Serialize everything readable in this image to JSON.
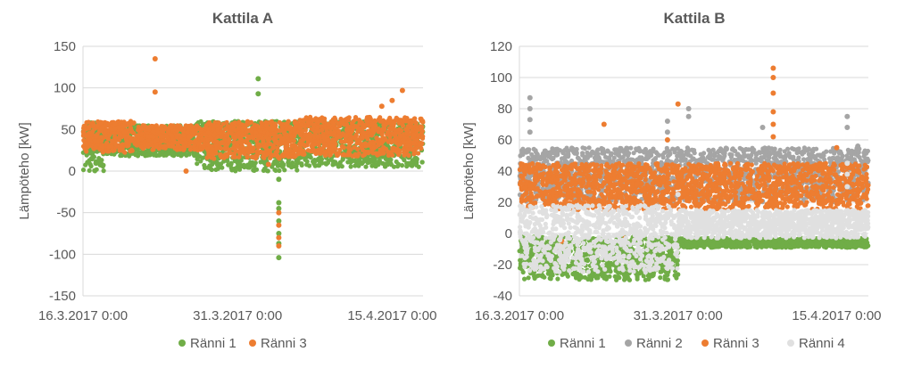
{
  "chart_data": [
    {
      "type": "scatter",
      "title": "Kattila A",
      "ylabel": "Lämpöteho [kW]",
      "xlabel": "",
      "ylim": [
        -150,
        150
      ],
      "yticks": [
        150,
        100,
        50,
        0,
        -50,
        -100,
        -150
      ],
      "xlim": [
        "2017-03-16",
        "2017-04-18"
      ],
      "xticks": [
        "16.3.2017 0:00",
        "31.3.2017 0:00",
        "15.4.2017 0:00"
      ],
      "grid": true,
      "legend_position": "bottom",
      "series": [
        {
          "name": "Ränni 1",
          "color": "#70ad47",
          "bands": [
            {
              "x_start": "2017-03-16",
              "x_end": "2017-03-18",
              "y_min": 0,
              "y_max": 60
            },
            {
              "x_start": "2017-03-18",
              "x_end": "2017-03-27",
              "y_min": 18,
              "y_max": 55
            },
            {
              "x_start": "2017-03-27",
              "x_end": "2017-04-07",
              "y_min": 0,
              "y_max": 60
            },
            {
              "x_start": "2017-04-07",
              "x_end": "2017-04-18",
              "y_min": 5,
              "y_max": 60
            }
          ],
          "points": [
            {
              "x": "2017-04-02",
              "y": 111
            },
            {
              "x": "2017-04-02",
              "y": 93
            },
            {
              "x": "2017-04-04",
              "y": -38
            },
            {
              "x": "2017-04-04",
              "y": -45
            },
            {
              "x": "2017-04-04",
              "y": -60
            },
            {
              "x": "2017-04-04",
              "y": -75
            },
            {
              "x": "2017-04-04",
              "y": -87
            },
            {
              "x": "2017-04-04",
              "y": -104
            },
            {
              "x": "2017-04-04",
              "y": -10
            }
          ]
        },
        {
          "name": "Ränni 3",
          "color": "#ed7d31",
          "bands": [
            {
              "x_start": "2017-03-16",
              "x_end": "2017-03-21",
              "y_min": 22,
              "y_max": 60
            },
            {
              "x_start": "2017-03-21",
              "x_end": "2017-03-28",
              "y_min": 25,
              "y_max": 55
            },
            {
              "x_start": "2017-03-28",
              "x_end": "2017-04-06",
              "y_min": 15,
              "y_max": 60
            },
            {
              "x_start": "2017-04-06",
              "x_end": "2017-04-18",
              "y_min": 18,
              "y_max": 65
            }
          ],
          "points": [
            {
              "x": "2017-03-23",
              "y": 135
            },
            {
              "x": "2017-03-23",
              "y": 95
            },
            {
              "x": "2017-04-04",
              "y": -50
            },
            {
              "x": "2017-04-04",
              "y": -65
            },
            {
              "x": "2017-04-04",
              "y": -80
            },
            {
              "x": "2017-04-04",
              "y": -90
            },
            {
              "x": "2017-04-16",
              "y": 97
            },
            {
              "x": "2017-04-15",
              "y": 85
            },
            {
              "x": "2017-04-14",
              "y": 78
            },
            {
              "x": "2017-03-26",
              "y": 0
            },
            {
              "x": "2017-04-03",
              "y": 8
            }
          ]
        }
      ]
    },
    {
      "type": "scatter",
      "title": "Kattila B",
      "ylabel": "Lämpöteho [kW]",
      "xlabel": "",
      "ylim": [
        -40,
        120
      ],
      "yticks": [
        120,
        100,
        80,
        60,
        40,
        20,
        0,
        -20,
        -40
      ],
      "xlim": [
        "2017-03-16",
        "2017-04-18"
      ],
      "xticks": [
        "16.3.2017 0:00",
        "31.3.2017 0:00",
        "15.4.2017 0:00"
      ],
      "grid": true,
      "legend_position": "bottom",
      "series": [
        {
          "name": "Ränni 1",
          "color": "#70ad47",
          "bands": [
            {
              "x_start": "2017-03-16",
              "x_end": "2017-03-31",
              "y_min": -30,
              "y_max": -2
            },
            {
              "x_start": "2017-03-31",
              "x_end": "2017-04-18",
              "y_min": -9,
              "y_max": -3
            }
          ],
          "points": []
        },
        {
          "name": "Ränni 2",
          "color": "#a5a5a5",
          "bands": [
            {
              "x_start": "2017-03-16",
              "x_end": "2017-04-18",
              "y_min": 20,
              "y_max": 55
            }
          ],
          "points": [
            {
              "x": "2017-03-17",
              "y": 87
            },
            {
              "x": "2017-03-17",
              "y": 80
            },
            {
              "x": "2017-03-17",
              "y": 73
            },
            {
              "x": "2017-03-17",
              "y": 65
            },
            {
              "x": "2017-03-30",
              "y": 72
            },
            {
              "x": "2017-03-30",
              "y": 65
            },
            {
              "x": "2017-04-01",
              "y": 80
            },
            {
              "x": "2017-04-01",
              "y": 75
            },
            {
              "x": "2017-04-08",
              "y": 68
            },
            {
              "x": "2017-04-16",
              "y": 75
            },
            {
              "x": "2017-04-16",
              "y": 68
            },
            {
              "x": "2017-04-17",
              "y": 56
            }
          ]
        },
        {
          "name": "Ränni 3",
          "color": "#ed7d31",
          "bands": [
            {
              "x_start": "2017-03-16",
              "x_end": "2017-04-18",
              "y_min": 15,
              "y_max": 45
            }
          ],
          "points": [
            {
              "x": "2017-03-24",
              "y": 70
            },
            {
              "x": "2017-03-30",
              "y": 60
            },
            {
              "x": "2017-03-31",
              "y": 83
            },
            {
              "x": "2017-04-09",
              "y": 106
            },
            {
              "x": "2017-04-09",
              "y": 100
            },
            {
              "x": "2017-04-09",
              "y": 90
            },
            {
              "x": "2017-04-09",
              "y": 78
            },
            {
              "x": "2017-04-09",
              "y": 70
            },
            {
              "x": "2017-04-09",
              "y": 62
            },
            {
              "x": "2017-04-15",
              "y": 55
            },
            {
              "x": "2017-03-26",
              "y": -3
            },
            {
              "x": "2017-03-20",
              "y": -5
            }
          ]
        },
        {
          "name": "Ränni 4",
          "color": "#e0e0e0",
          "bands": [
            {
              "x_start": "2017-03-16",
              "x_end": "2017-03-31",
              "y_min": -25,
              "y_max": 18
            },
            {
              "x_start": "2017-03-31",
              "x_end": "2017-04-18",
              "y_min": -3,
              "y_max": 15
            }
          ],
          "points": [
            {
              "x": "2017-04-16",
              "y": 45
            },
            {
              "x": "2017-04-16",
              "y": 38
            },
            {
              "x": "2017-04-16",
              "y": 30
            },
            {
              "x": "2017-03-31",
              "y": 25
            }
          ]
        }
      ]
    }
  ]
}
